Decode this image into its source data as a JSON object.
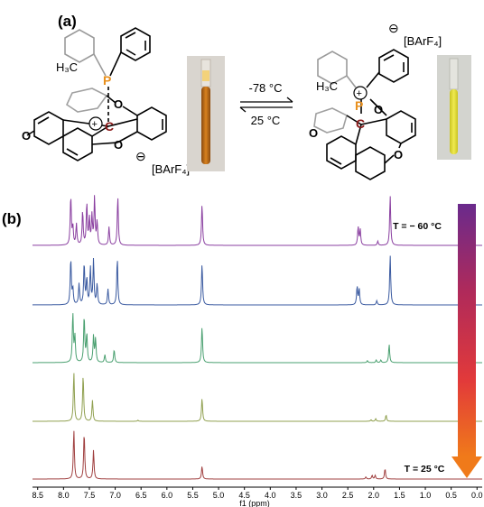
{
  "panel_a": {
    "label": "(a)",
    "left_struct": {
      "h3c": "H₃C",
      "p": "P",
      "c": "C",
      "o": "O",
      "plus": "+",
      "minus": "⊖",
      "anion": "[BArF₄]"
    },
    "right_struct": {
      "h3c": "H₃C",
      "p": "P",
      "c": "C",
      "o": "O",
      "plus": "+",
      "minus": "⊖",
      "anion": "[BArF₄]"
    },
    "equilibrium": {
      "top": "-78 °C",
      "bottom": "25 °C"
    },
    "colors": {
      "tube_left": "#c9731c",
      "tube_right": "#e5e13a",
      "p_atom": "#e8901e",
      "c_atom": "#8b1a1a"
    }
  },
  "panel_b": {
    "label": "(b)",
    "t_top": "T = − 60 °C",
    "t_bottom": "T = 25 °C",
    "arrow_colors": [
      "#6a2a8c",
      "#b02a5a",
      "#e23a3a",
      "#f07a1a"
    ]
  },
  "chart_data": {
    "type": "line",
    "xlabel": "f1 (ppm)",
    "xlim": [
      8.6,
      -0.1
    ],
    "reversed_x": true,
    "ticks": [
      "8.5",
      "8.0",
      "7.5",
      "7.0",
      "6.5",
      "6.0",
      "5.5",
      "5.0",
      "4.5",
      "4.0",
      "3.5",
      "3.0",
      "2.5",
      "2.0",
      "1.5",
      "1.0",
      "0.5",
      "0.0"
    ],
    "tick_values": [
      8.5,
      8.0,
      7.5,
      7.0,
      6.5,
      6.0,
      5.5,
      5.0,
      4.5,
      4.0,
      3.5,
      3.0,
      2.5,
      2.0,
      1.5,
      1.0,
      0.5,
      0.0
    ],
    "series": [
      {
        "color": "#8a3fa0",
        "order": 0,
        "peaks": [
          [
            7.86,
            0.95
          ],
          [
            7.82,
            0.35
          ],
          [
            7.75,
            0.4
          ],
          [
            7.63,
            0.65
          ],
          [
            7.55,
            0.8
          ],
          [
            7.5,
            0.5
          ],
          [
            7.45,
            0.55
          ],
          [
            7.4,
            0.9
          ],
          [
            7.35,
            0.45
          ],
          [
            7.12,
            0.35
          ],
          [
            6.95,
            0.95
          ],
          [
            5.32,
            0.8
          ],
          [
            2.3,
            0.35
          ],
          [
            2.26,
            0.3
          ],
          [
            1.92,
            0.08
          ],
          [
            1.68,
            0.95
          ]
        ]
      },
      {
        "color": "#3a5aa0",
        "order": 1,
        "peaks": [
          [
            7.86,
            0.9
          ],
          [
            7.82,
            0.3
          ],
          [
            7.7,
            0.4
          ],
          [
            7.6,
            0.8
          ],
          [
            7.55,
            0.5
          ],
          [
            7.48,
            0.7
          ],
          [
            7.42,
            0.85
          ],
          [
            7.35,
            0.4
          ],
          [
            7.14,
            0.3
          ],
          [
            6.96,
            0.9
          ],
          [
            5.32,
            0.8
          ],
          [
            2.32,
            0.35
          ],
          [
            2.28,
            0.3
          ],
          [
            1.94,
            0.08
          ],
          [
            1.68,
            0.95
          ]
        ]
      },
      {
        "color": "#4aa070",
        "order": 2,
        "peaks": [
          [
            7.82,
            0.95
          ],
          [
            7.78,
            0.5
          ],
          [
            7.6,
            0.9
          ],
          [
            7.55,
            0.55
          ],
          [
            7.42,
            0.5
          ],
          [
            7.38,
            0.45
          ],
          [
            7.2,
            0.15
          ],
          [
            7.02,
            0.25
          ],
          [
            5.32,
            0.7
          ],
          [
            2.12,
            0.04
          ],
          [
            1.95,
            0.05
          ],
          [
            1.86,
            0.05
          ],
          [
            1.7,
            0.35
          ]
        ]
      },
      {
        "color": "#90a050",
        "order": 3,
        "peaks": [
          [
            7.8,
            0.95
          ],
          [
            7.62,
            0.9
          ],
          [
            7.44,
            0.4
          ],
          [
            6.56,
            0.02
          ],
          [
            5.32,
            0.45
          ],
          [
            2.05,
            0.03
          ],
          [
            1.96,
            0.05
          ],
          [
            1.76,
            0.12
          ]
        ]
      },
      {
        "color": "#a04040",
        "order": 4,
        "peaks": [
          [
            7.8,
            0.95
          ],
          [
            7.6,
            0.9
          ],
          [
            7.42,
            0.55
          ],
          [
            5.32,
            0.25
          ],
          [
            2.15,
            0.04
          ],
          [
            2.03,
            0.07
          ],
          [
            1.97,
            0.07
          ],
          [
            1.78,
            0.2
          ]
        ]
      }
    ]
  }
}
